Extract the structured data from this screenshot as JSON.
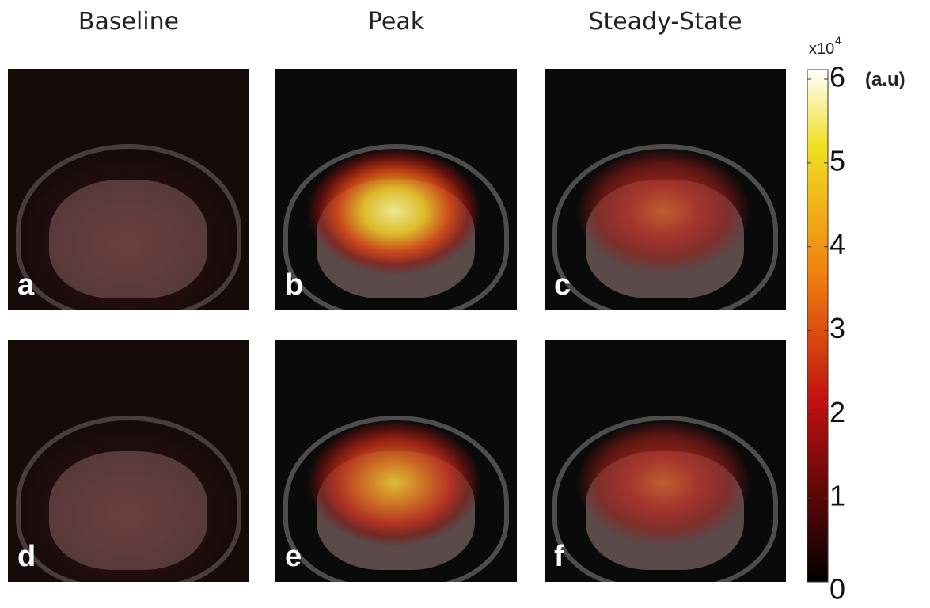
{
  "columns": [
    "Baseline",
    "Peak",
    "Steady-State"
  ],
  "panels": [
    "a",
    "b",
    "c",
    "d",
    "e",
    "f"
  ],
  "colorbar": {
    "ticks": [
      0,
      1,
      2,
      3,
      4,
      5,
      6
    ],
    "scale_base": "x10",
    "scale_power": "4",
    "unit": "(a.u)"
  }
}
